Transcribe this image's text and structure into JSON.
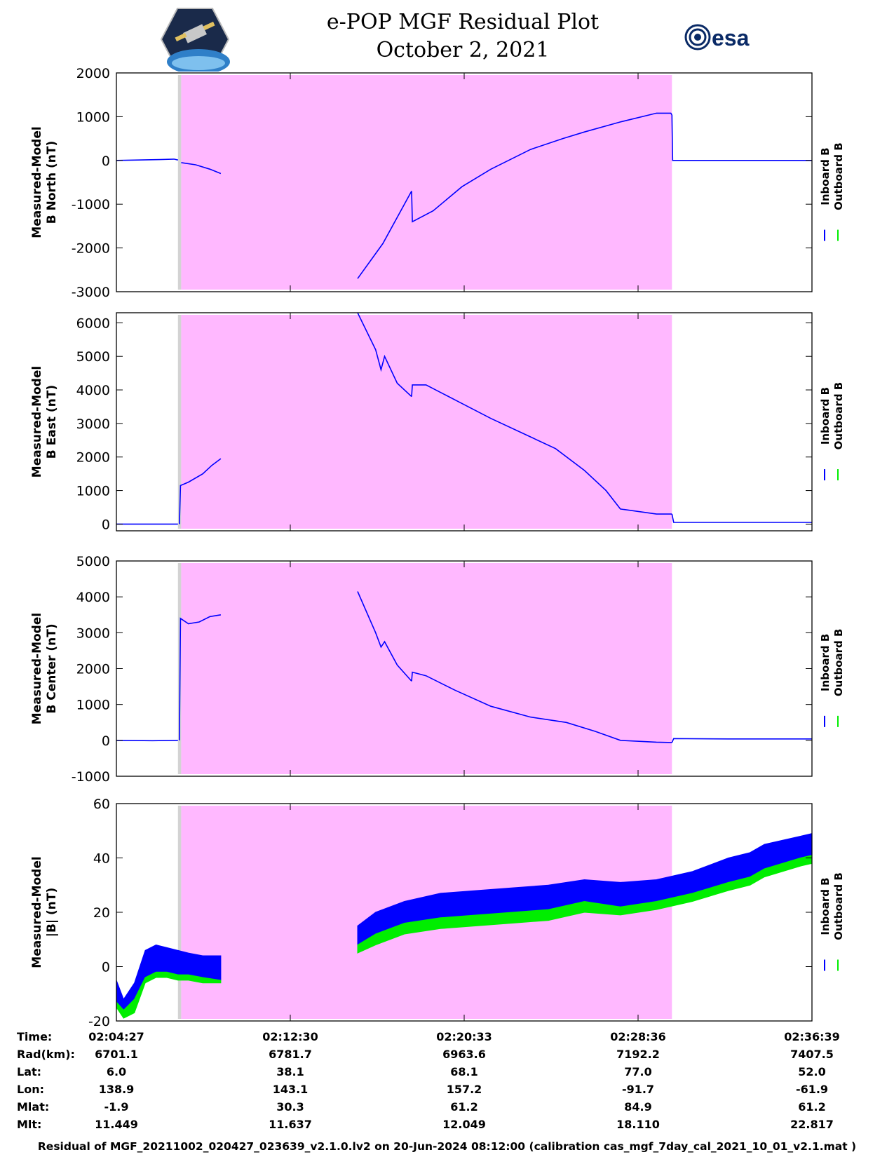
{
  "header": {
    "title_line1": "e-POP MGF Residual Plot",
    "title_line2": "October 2, 2021",
    "left_logo": "cassiope-satellite-logo",
    "right_logo": "esa-logo",
    "right_logo_text": "esa"
  },
  "colors": {
    "inboard": "#0000ff",
    "outboard": "#00ee00",
    "shade_gray": "#d3d3d3",
    "shade_pink": "#ffb8ff"
  },
  "legend": {
    "inboard": "Inboard B",
    "outboard": "Outboard B"
  },
  "chart_data": [
    {
      "type": "line",
      "ylabel_line1": "Measured-Model",
      "ylabel_line2": "B North (nT)",
      "ylim": [
        -3000,
        2000
      ],
      "yticks": [
        -3000,
        -2000,
        -1000,
        0,
        1000,
        2000
      ],
      "xlim_s": [
        0,
        1932
      ],
      "shading": {
        "gray_s": [
          171,
          180
        ],
        "pink_s": [
          180,
          1543
        ]
      },
      "series": [
        {
          "name": "Inboard B",
          "segments": [
            {
              "x": [
                0,
                60,
                120,
                160,
                171
              ],
              "y": [
                0,
                10,
                20,
                30,
                10
              ]
            },
            {
              "x": [
                180,
                220,
                260,
                290
              ],
              "y": [
                -50,
                -100,
                -200,
                -300
              ]
            },
            {
              "x": [
                670,
                740,
                820
              ],
              "y": [
                -2700,
                -1900,
                -700
              ]
            },
            {
              "x": [
                820,
                822,
                880,
                960,
                1040,
                1150,
                1240,
                1300,
                1400,
                1500,
                1540,
                1543
              ],
              "y": [
                -700,
                -1400,
                -1150,
                -600,
                -200,
                250,
                500,
                650,
                880,
                1080,
                1080,
                1040
              ]
            },
            {
              "x": [
                1543,
                1545,
                1600,
                1700,
                1800,
                1932
              ],
              "y": [
                1040,
                0,
                0,
                0,
                0,
                0
              ]
            }
          ]
        }
      ]
    },
    {
      "type": "line",
      "ylabel_line1": "Measured-Model",
      "ylabel_line2": "B East (nT)",
      "ylim": [
        -200,
        6300
      ],
      "yticks": [
        0,
        1000,
        2000,
        3000,
        4000,
        5000,
        6000
      ],
      "xlim_s": [
        0,
        1932
      ],
      "shading": {
        "gray_s": [
          171,
          180
        ],
        "pink_s": [
          180,
          1543
        ]
      },
      "series": [
        {
          "name": "Inboard B",
          "segments": [
            {
              "x": [
                0,
                100,
                171
              ],
              "y": [
                0,
                0,
                0
              ]
            },
            {
              "x": [
                175,
                178,
                200,
                240,
                265,
                290
              ],
              "y": [
                0,
                1150,
                1250,
                1500,
                1750,
                1950
              ]
            },
            {
              "x": [
                670,
                720,
                735,
                745,
                780,
                820
              ],
              "y": [
                6300,
                5200,
                4600,
                5000,
                4200,
                3800
              ]
            },
            {
              "x": [
                820,
                822,
                860,
                950,
                1040,
                1150,
                1220,
                1300,
                1360,
                1400,
                1500,
                1543
              ],
              "y": [
                3800,
                4150,
                4150,
                3650,
                3150,
                2600,
                2250,
                1600,
                1000,
                450,
                300,
                300
              ]
            },
            {
              "x": [
                1543,
                1548,
                1700,
                1932
              ],
              "y": [
                300,
                50,
                50,
                50
              ]
            }
          ]
        }
      ]
    },
    {
      "type": "line",
      "ylabel_line1": "Measured-Model",
      "ylabel_line2": "B Center (nT)",
      "ylim": [
        -1000,
        5000
      ],
      "yticks": [
        -1000,
        0,
        1000,
        2000,
        3000,
        4000,
        5000
      ],
      "xlim_s": [
        0,
        1932
      ],
      "shading": {
        "gray_s": [
          171,
          180
        ],
        "pink_s": [
          180,
          1543
        ]
      },
      "series": [
        {
          "name": "Inboard B",
          "segments": [
            {
              "x": [
                0,
                100,
                171
              ],
              "y": [
                0,
                -10,
                0
              ]
            },
            {
              "x": [
                175,
                178,
                200,
                230,
                260,
                290
              ],
              "y": [
                0,
                3400,
                3250,
                3300,
                3450,
                3500
              ]
            },
            {
              "x": [
                670,
                720,
                735,
                745,
                780,
                820
              ],
              "y": [
                4150,
                3000,
                2600,
                2750,
                2100,
                1650
              ]
            },
            {
              "x": [
                820,
                822,
                860,
                940,
                1040,
                1150,
                1250,
                1330,
                1400,
                1500,
                1543
              ],
              "y": [
                1650,
                1900,
                1800,
                1400,
                950,
                650,
                500,
                250,
                0,
                -50,
                -60
              ]
            },
            {
              "x": [
                1543,
                1548,
                1700,
                1932
              ],
              "y": [
                -60,
                50,
                40,
                40
              ]
            }
          ]
        }
      ]
    },
    {
      "type": "line",
      "ylabel_line1": "Measured-Model",
      "ylabel_line2": "|B| (nT)",
      "ylim": [
        -20,
        60
      ],
      "yticks": [
        -20,
        0,
        20,
        40,
        60
      ],
      "xlim_s": [
        0,
        1932
      ],
      "shading": {
        "gray_s": [
          171,
          180
        ],
        "pink_s": [
          180,
          1543
        ]
      },
      "series": [
        {
          "name": "Inboard B",
          "band": true,
          "segments": [
            {
              "x": [
                0,
                20,
                50,
                80,
                110,
                140,
                171,
                200,
                240,
                290
              ],
              "ymax": [
                -5,
                -12,
                -6,
                6,
                8,
                7,
                6,
                5,
                4,
                4
              ],
              "ymin": [
                -13,
                -18,
                -15,
                -4,
                -2,
                -2,
                -3,
                -3,
                -4,
                -5
              ]
            },
            {
              "x": [
                670,
                720,
                800,
                900,
                1000,
                1100,
                1200,
                1300,
                1400,
                1500,
                1600,
                1700,
                1760,
                1800,
                1900,
                1932
              ],
              "ymax": [
                15,
                20,
                24,
                27,
                28,
                29,
                30,
                32,
                31,
                32,
                35,
                40,
                42,
                45,
                48,
                49
              ],
              "ymin": [
                6,
                9,
                13,
                15,
                16,
                17,
                18,
                22,
                20,
                23,
                26,
                30,
                32,
                35,
                40,
                41
              ]
            }
          ]
        },
        {
          "name": "Outboard B",
          "band": true,
          "segments": [
            {
              "x": [
                0,
                20,
                50,
                80,
                110,
                140,
                171,
                200,
                240,
                290
              ],
              "ymax": [
                -13,
                -16,
                -12,
                -4,
                -2,
                -2,
                -3,
                -3,
                -4,
                -5
              ],
              "ymin": [
                -15,
                -19,
                -17,
                -6,
                -4,
                -4,
                -5,
                -5,
                -6,
                -6
              ]
            },
            {
              "x": [
                670,
                720,
                800,
                900,
                1000,
                1100,
                1200,
                1300,
                1400,
                1500,
                1600,
                1700,
                1760,
                1800,
                1900,
                1932
              ],
              "ymax": [
                8,
                12,
                16,
                18,
                19,
                20,
                21,
                24,
                22,
                24,
                27,
                31,
                33,
                36,
                40,
                41
              ],
              "ymin": [
                5,
                8,
                12,
                14,
                15,
                16,
                17,
                20,
                19,
                21,
                24,
                28,
                30,
                33,
                37,
                38
              ]
            }
          ]
        }
      ]
    }
  ],
  "ephemeris": {
    "row_labels": [
      "Time:",
      "Rad(km):",
      "Lat:",
      "Lon:",
      "Mlat:",
      "Mlt:"
    ],
    "columns": [
      [
        "02:04:27",
        "6701.1",
        "6.0",
        "138.9",
        "-1.9",
        "11.449"
      ],
      [
        "02:12:30",
        "6781.7",
        "38.1",
        "143.1",
        "30.3",
        "11.637"
      ],
      [
        "02:20:33",
        "6963.6",
        "68.1",
        "157.2",
        "61.2",
        "12.049"
      ],
      [
        "02:28:36",
        "7192.2",
        "77.0",
        "-91.7",
        "84.9",
        "18.110"
      ],
      [
        "02:36:39",
        "7407.5",
        "52.0",
        "-61.9",
        "61.2",
        "22.817"
      ]
    ]
  },
  "footer": "Residual of MGF_20211002_020427_023639_v2.1.0.lv2 on 20-Jun-2024 08:12:00 (calibration cas_mgf_7day_cal_2021_10_01_v2.1.mat )"
}
